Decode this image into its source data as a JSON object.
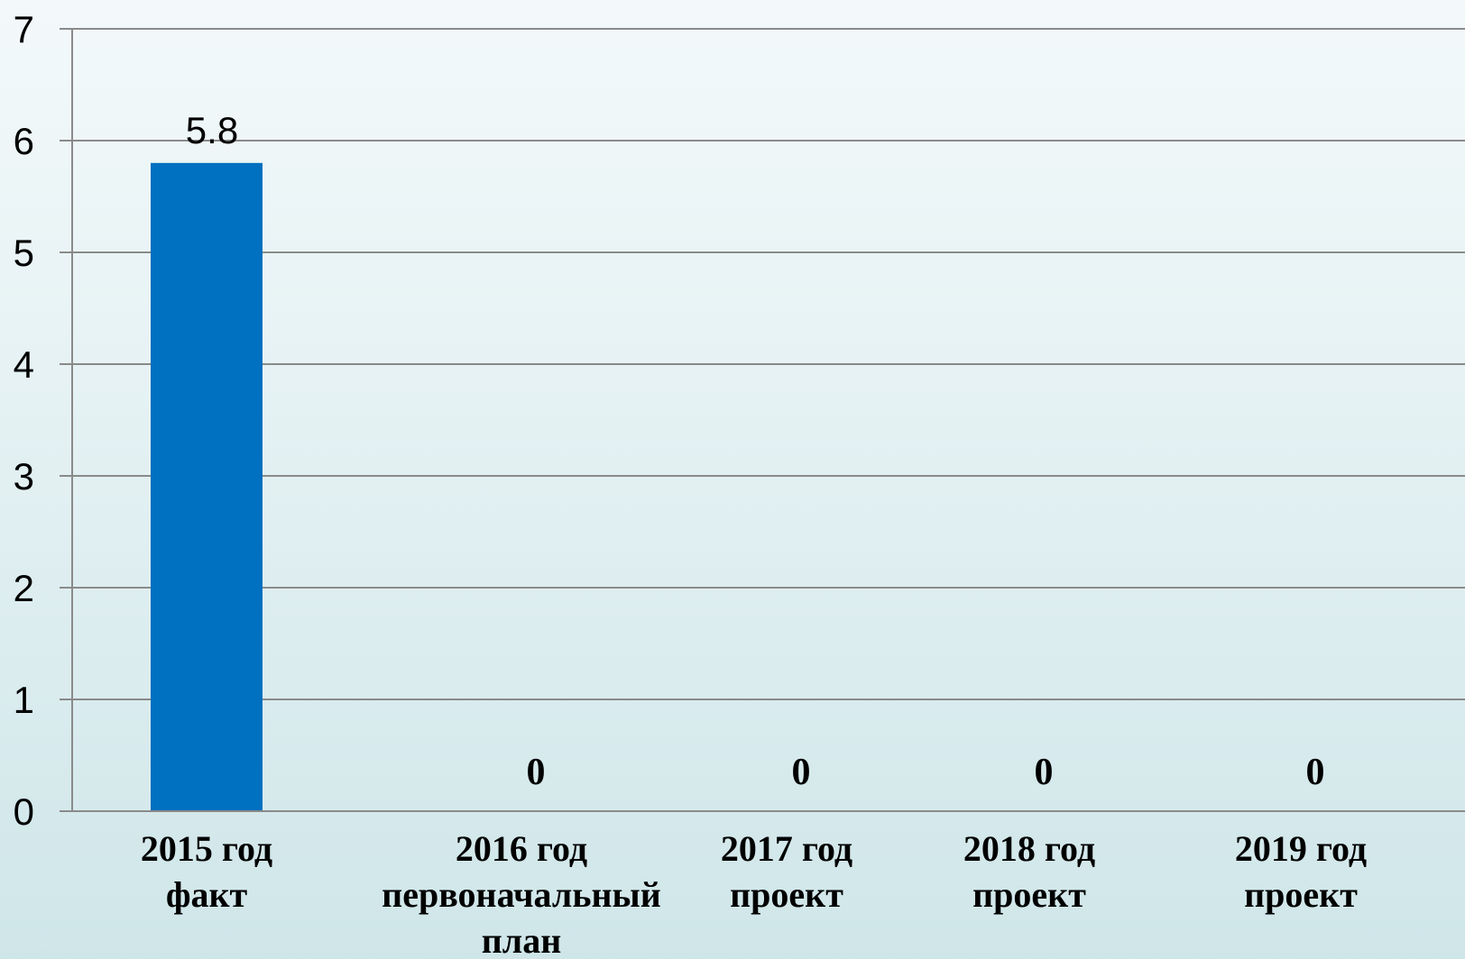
{
  "chart_data": {
    "type": "bar",
    "categories": [
      [
        "2015 год",
        "факт"
      ],
      [
        "2016 год",
        "первоначальный",
        "план"
      ],
      [
        "2017 год",
        "проект"
      ],
      [
        "2018 год",
        "проект"
      ],
      [
        "2019 год",
        "проект"
      ]
    ],
    "values": [
      5.8,
      0,
      0,
      0,
      0
    ],
    "value_labels": [
      "5.8",
      "0",
      "0",
      "0",
      "0"
    ],
    "yticks": [
      "0",
      "1",
      "2",
      "3",
      "4",
      "5",
      "6",
      "7"
    ],
    "ylim": [
      0,
      7
    ],
    "grid": true,
    "title": "",
    "xlabel": "",
    "ylabel": "",
    "colors": {
      "bar": "#0070c0",
      "grid": "#8a8a8a",
      "axis": "#8a8a8a"
    }
  }
}
